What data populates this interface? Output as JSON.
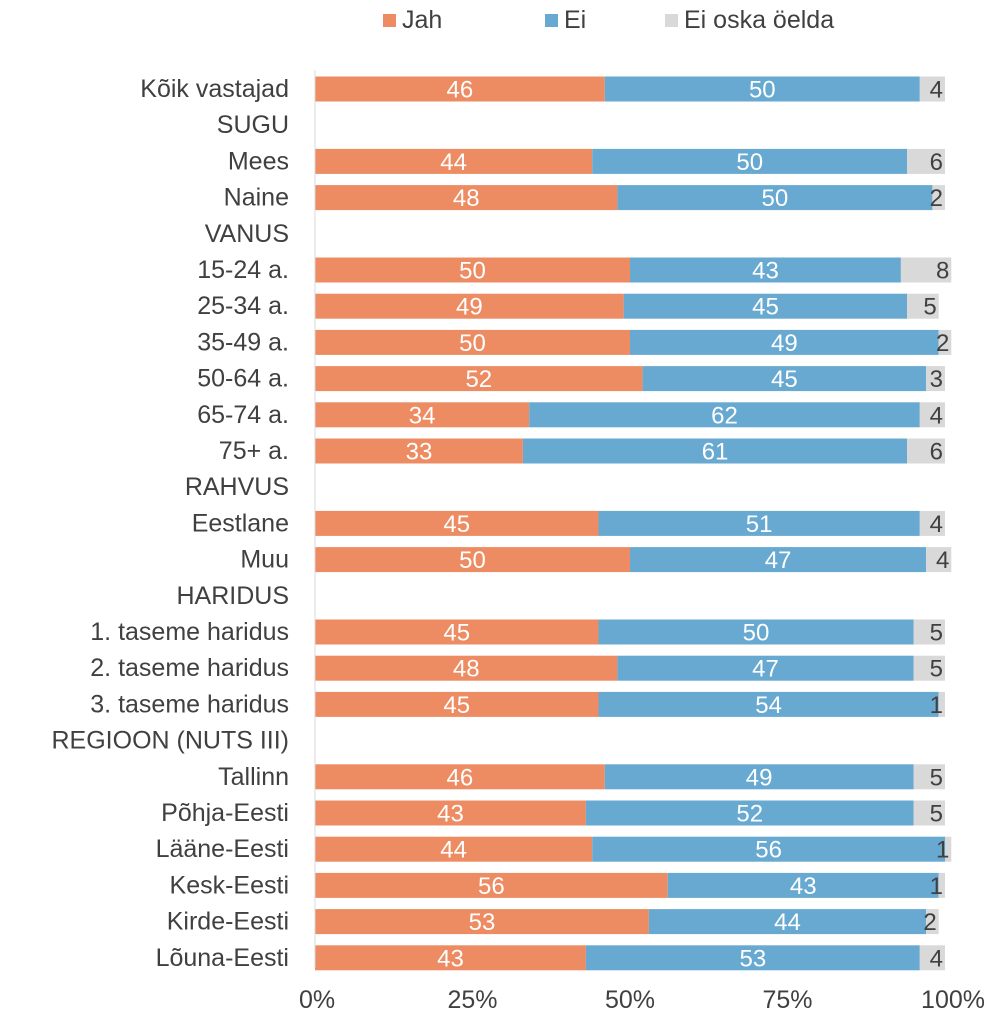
{
  "chart_data": {
    "type": "bar",
    "orientation": "horizontal",
    "stacked": "100%",
    "categories": [
      "Kõik vastajad",
      "SUGU",
      "Mees",
      "Naine",
      "VANUS",
      "15-24 a.",
      "25-34 a.",
      "35-49 a.",
      "50-64 a.",
      "65-74 a.",
      "75+ a.",
      "RAHVUS",
      "Eestlane",
      "Muu",
      "HARIDUS",
      "1. taseme haridus",
      "2. taseme haridus",
      "3. taseme haridus",
      "REGIOON (NUTS III)",
      "Tallinn",
      "Põhja-Eesti",
      "Lääne-Eesti",
      "Kesk-Eesti",
      "Kirde-Eesti",
      "Lõuna-Eesti"
    ],
    "series": [
      {
        "name": "Jah",
        "color": "#ED8C62",
        "values": [
          46,
          null,
          44,
          48,
          null,
          50,
          49,
          50,
          52,
          34,
          33,
          null,
          45,
          50,
          null,
          45,
          48,
          45,
          null,
          46,
          43,
          44,
          56,
          53,
          43
        ]
      },
      {
        "name": "Ei",
        "color": "#67A9D1",
        "values": [
          50,
          null,
          50,
          50,
          null,
          43,
          45,
          49,
          45,
          62,
          61,
          null,
          51,
          47,
          null,
          50,
          47,
          54,
          null,
          49,
          52,
          56,
          43,
          44,
          53
        ]
      },
      {
        "name": "Ei oska öelda",
        "color": "#D9D9D9",
        "values": [
          4,
          null,
          6,
          2,
          null,
          8,
          5,
          2,
          3,
          4,
          6,
          null,
          4,
          4,
          null,
          5,
          5,
          1,
          null,
          5,
          5,
          1,
          1,
          2,
          4
        ]
      }
    ],
    "x_ticks": [
      "0%",
      "25%",
      "50%",
      "75%",
      "100%"
    ],
    "xlim": [
      0,
      100
    ],
    "legend_position": "top",
    "grid": false
  }
}
